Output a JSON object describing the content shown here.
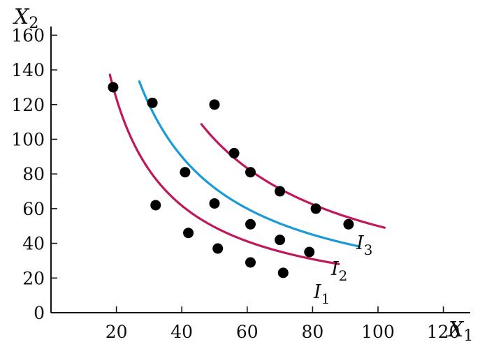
{
  "chart_data": {
    "type": "line",
    "x_axis": {
      "label": "X",
      "label_sub": "1",
      "ticks": [
        20,
        40,
        60,
        80,
        100,
        120
      ],
      "range": [
        0,
        125
      ]
    },
    "y_axis": {
      "label": "X",
      "label_sub": "2",
      "ticks": [
        0,
        20,
        40,
        60,
        80,
        100,
        120,
        140,
        160
      ],
      "range": [
        0,
        165
      ]
    },
    "grid": false,
    "series": [
      {
        "name": "I",
        "name_sub": "1",
        "color": "#c0185c",
        "curve": {
          "k": 2470,
          "x_from": 18,
          "x_to": 88,
          "max_y": 156
        },
        "points": [
          [
            19,
            130
          ],
          [
            32,
            62
          ],
          [
            42,
            46
          ],
          [
            51,
            37
          ],
          [
            61,
            29
          ],
          [
            71,
            23
          ]
        ]
      },
      {
        "name": "I",
        "name_sub": "2",
        "color": "#1a9ad6",
        "curve": {
          "k": 3600,
          "x_from": 27,
          "x_to": 94,
          "max_y": 154
        },
        "points": [
          [
            31,
            121
          ],
          [
            41,
            81
          ],
          [
            50,
            63
          ],
          [
            61,
            51
          ],
          [
            70,
            42
          ],
          [
            79,
            35
          ]
        ]
      },
      {
        "name": "I",
        "name_sub": "3",
        "color": "#c0185c",
        "curve": {
          "k": 5000,
          "x_from": 46,
          "x_to": 102,
          "max_y": 145
        },
        "points": [
          [
            50,
            120
          ],
          [
            56,
            92
          ],
          [
            61,
            81
          ],
          [
            70,
            70
          ],
          [
            81,
            60
          ],
          [
            91,
            51
          ]
        ]
      }
    ]
  }
}
